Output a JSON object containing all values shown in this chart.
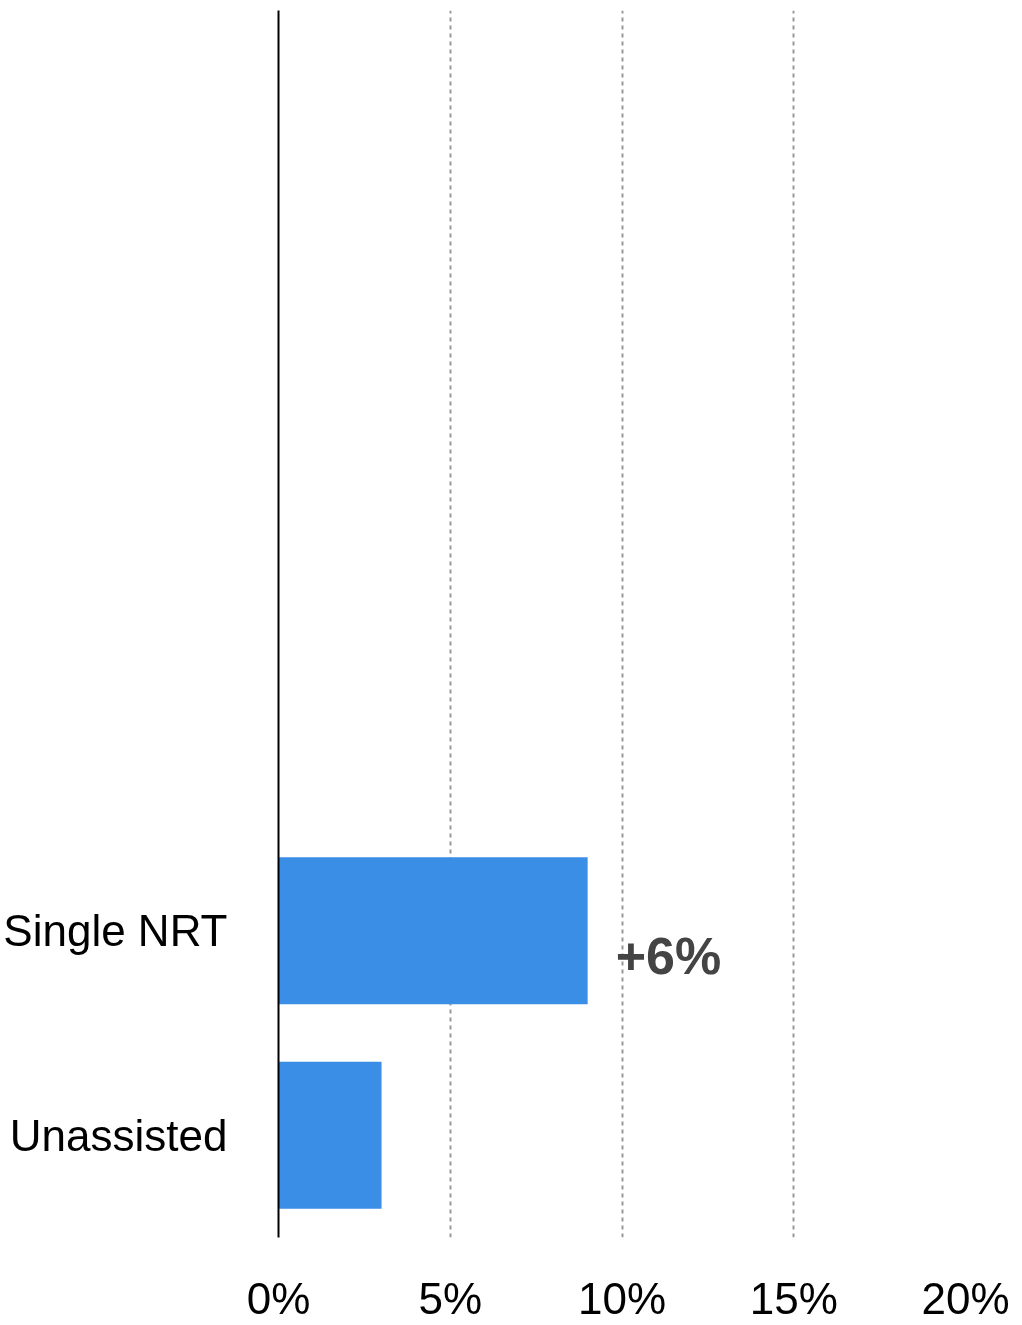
{
  "chart_data": {
    "type": "bar",
    "orientation": "horizontal",
    "categories": [
      null,
      null,
      null,
      null,
      "Single NRT",
      "Unassisted"
    ],
    "values": [
      null,
      null,
      null,
      null,
      9,
      3
    ],
    "color": "#3a8ee6",
    "xlim": [
      0,
      20
    ],
    "xticks": [
      {
        "value": 0,
        "label": "0%"
      },
      {
        "value": 5,
        "label": "5%"
      },
      {
        "value": 10,
        "label": "10%"
      },
      {
        "value": 15,
        "label": "15%"
      },
      {
        "value": 20,
        "label": "20%"
      }
    ],
    "grid": "x",
    "annotations": [
      {
        "text": "+6%",
        "x": 9,
        "y": "Single NRT"
      }
    ]
  }
}
